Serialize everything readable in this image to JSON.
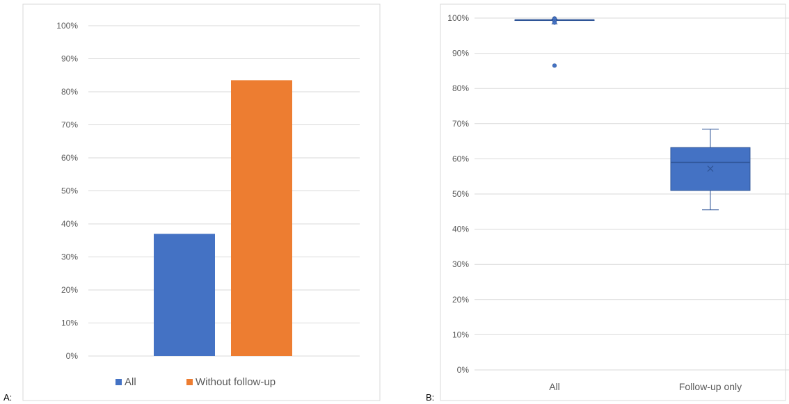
{
  "panel_labels": {
    "a": "A:",
    "b": "B:"
  },
  "colors": {
    "all": "#4472c4",
    "without_follow_up": "#ed7d31",
    "box_fill": "#4472c4",
    "box_stroke": "#2f5597",
    "grid": "#d9d9d9",
    "frame": "#d9d9d9",
    "text": "#595959"
  },
  "chart_data": [
    {
      "panel": "A",
      "type": "bar",
      "categories": [
        "All",
        "Without follow-up"
      ],
      "values": [
        0.37,
        0.835
      ],
      "series_colors": [
        "#4472c4",
        "#ed7d31"
      ],
      "legend": [
        "All",
        "Without follow-up"
      ],
      "legend_position": "bottom",
      "ylim": [
        0,
        1
      ],
      "yticks": [
        0,
        0.1,
        0.2,
        0.3,
        0.4,
        0.5,
        0.6,
        0.7,
        0.8,
        0.9,
        1.0
      ],
      "ytick_labels": [
        "0%",
        "10%",
        "20%",
        "30%",
        "40%",
        "50%",
        "60%",
        "70%",
        "80%",
        "90%",
        "100%"
      ],
      "grid": true,
      "title": "",
      "xlabel": "",
      "ylabel": ""
    },
    {
      "panel": "B",
      "type": "box",
      "categories": [
        "All",
        "Follow-up only"
      ],
      "boxes": [
        {
          "name": "All",
          "min": 0.995,
          "q1": 0.995,
          "median": 0.995,
          "q3": 0.995,
          "max": 0.995,
          "mean": 0.99,
          "outliers": [
            0.999,
            0.997,
            0.992,
            0.987,
            0.865
          ]
        },
        {
          "name": "Follow-up only",
          "min": 0.455,
          "q1": 0.51,
          "median": 0.59,
          "q3": 0.632,
          "max": 0.684,
          "mean": 0.572,
          "outliers": []
        }
      ],
      "ylim": [
        0,
        1
      ],
      "yticks": [
        0,
        0.1,
        0.2,
        0.3,
        0.4,
        0.5,
        0.6,
        0.7,
        0.8,
        0.9,
        1.0
      ],
      "ytick_labels": [
        "0%",
        "10%",
        "20%",
        "30%",
        "40%",
        "50%",
        "60%",
        "70%",
        "80%",
        "90%",
        "100%"
      ],
      "grid": true,
      "title": "",
      "xlabel": "",
      "ylabel": ""
    }
  ]
}
